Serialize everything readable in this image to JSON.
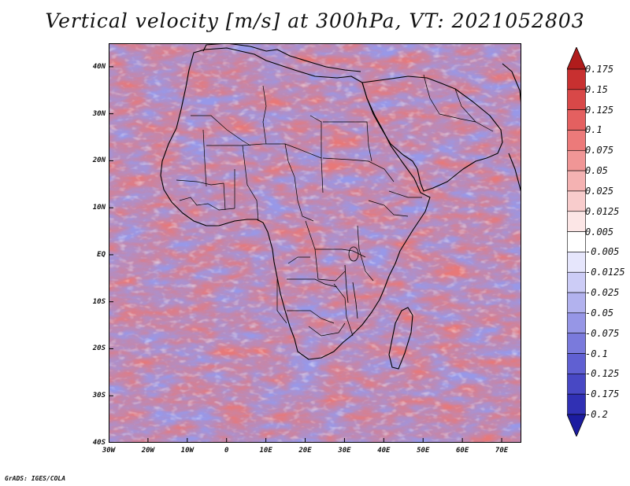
{
  "title": "Vertical velocity [m/s] at 300hPa, VT: 2021052803",
  "map": {
    "lat_labels": [
      "40N",
      "30N",
      "20N",
      "10N",
      "EQ",
      "10S",
      "20S",
      "30S",
      "40S"
    ],
    "lat_values": [
      40,
      30,
      20,
      10,
      0,
      -10,
      -20,
      -30,
      -40
    ],
    "lon_labels": [
      "30W",
      "20W",
      "10W",
      "0",
      "10E",
      "20E",
      "30E",
      "40E",
      "50E",
      "60E",
      "70E"
    ],
    "lon_values": [
      -30,
      -20,
      -10,
      0,
      10,
      20,
      30,
      40,
      50,
      60,
      70
    ],
    "lon_range": [
      -30,
      75
    ],
    "lat_range": [
      -40,
      45
    ]
  },
  "colorbar": {
    "labels": [
      "0.175",
      "0.15",
      "0.125",
      "0.1",
      "0.075",
      "0.05",
      "0.025",
      "0.0125",
      "0.005",
      "-0.005",
      "-0.0125",
      "-0.025",
      "-0.05",
      "-0.075",
      "-0.1",
      "-0.125",
      "-0.175",
      "-0.2"
    ],
    "colors": [
      "#b01c1c",
      "#c83030",
      "#d84848",
      "#e46060",
      "#ec7a7a",
      "#f09696",
      "#f4b2b2",
      "#f8cccc",
      "#fce6e6",
      "#ffffff",
      "#e6e6fc",
      "#ccccf6",
      "#b2b2ee",
      "#9696e6",
      "#7a7adc",
      "#6060d2",
      "#4848c4",
      "#3030b4",
      "#1c1ca0"
    ]
  },
  "footer": "GrADS: IGES/COLA"
}
